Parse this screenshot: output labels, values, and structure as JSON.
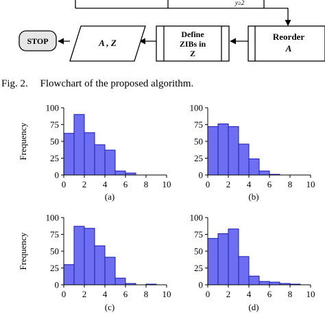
{
  "flowchart": {
    "stop_label": "STOP",
    "io_label": "A , Z",
    "define_line1": "Define",
    "define_line2": "ZIBs in",
    "define_line3": "Z",
    "reorder_line1": "Reorder",
    "reorder_line2": "A",
    "top_edge_fragment": "y≥2"
  },
  "figure_caption": {
    "label": "Fig. 2.",
    "text": "Flowchart of the proposed algorithm."
  },
  "colors": {
    "bar_fill": "#6e6ef2",
    "bar_stroke": "#1a1ab0",
    "stop_fill": "#e6e6e6"
  },
  "chart_data": [
    {
      "type": "bar",
      "subcaption": "(a)",
      "ylabel": "Frequency",
      "bin_edges": [
        0,
        1,
        2,
        3,
        4,
        5,
        6,
        7,
        8,
        9,
        10
      ],
      "values": [
        62,
        90,
        63,
        45,
        37,
        6,
        3,
        0,
        0,
        0
      ],
      "xticks": [
        0,
        2,
        4,
        6,
        8,
        10
      ],
      "yticks": [
        0,
        25,
        50,
        75,
        100
      ],
      "xlim": [
        0,
        10
      ],
      "ylim": [
        0,
        100
      ]
    },
    {
      "type": "bar",
      "subcaption": "(b)",
      "ylabel": "",
      "bin_edges": [
        0,
        1,
        2,
        3,
        4,
        5,
        6,
        7,
        8,
        9,
        10
      ],
      "values": [
        72,
        76,
        72,
        46,
        24,
        6,
        1,
        0,
        0,
        0
      ],
      "xticks": [
        0,
        2,
        4,
        6,
        8,
        10
      ],
      "yticks": [
        0,
        25,
        50,
        75,
        100
      ],
      "xlim": [
        0,
        10
      ],
      "ylim": [
        0,
        100
      ]
    },
    {
      "type": "bar",
      "subcaption": "(c)",
      "ylabel": "Frequency",
      "bin_edges": [
        0,
        1,
        2,
        3,
        4,
        5,
        6,
        7,
        8,
        9,
        10
      ],
      "values": [
        30,
        87,
        84,
        58,
        41,
        10,
        2,
        0,
        1,
        0
      ],
      "xticks": [
        0,
        2,
        4,
        6,
        8,
        10
      ],
      "yticks": [
        0,
        25,
        50,
        75,
        100
      ],
      "xlim": [
        0,
        10
      ],
      "ylim": [
        0,
        100
      ]
    },
    {
      "type": "bar",
      "subcaption": "(d)",
      "ylabel": "",
      "bin_edges": [
        0,
        1,
        2,
        3,
        4,
        5,
        6,
        7,
        8,
        9,
        10
      ],
      "values": [
        69,
        76,
        83,
        42,
        13,
        5,
        4,
        2,
        1,
        0
      ],
      "xticks": [
        0,
        2,
        4,
        6,
        8,
        10
      ],
      "yticks": [
        0,
        25,
        50,
        75,
        100
      ],
      "xlim": [
        0,
        10
      ],
      "ylim": [
        0,
        100
      ]
    }
  ]
}
